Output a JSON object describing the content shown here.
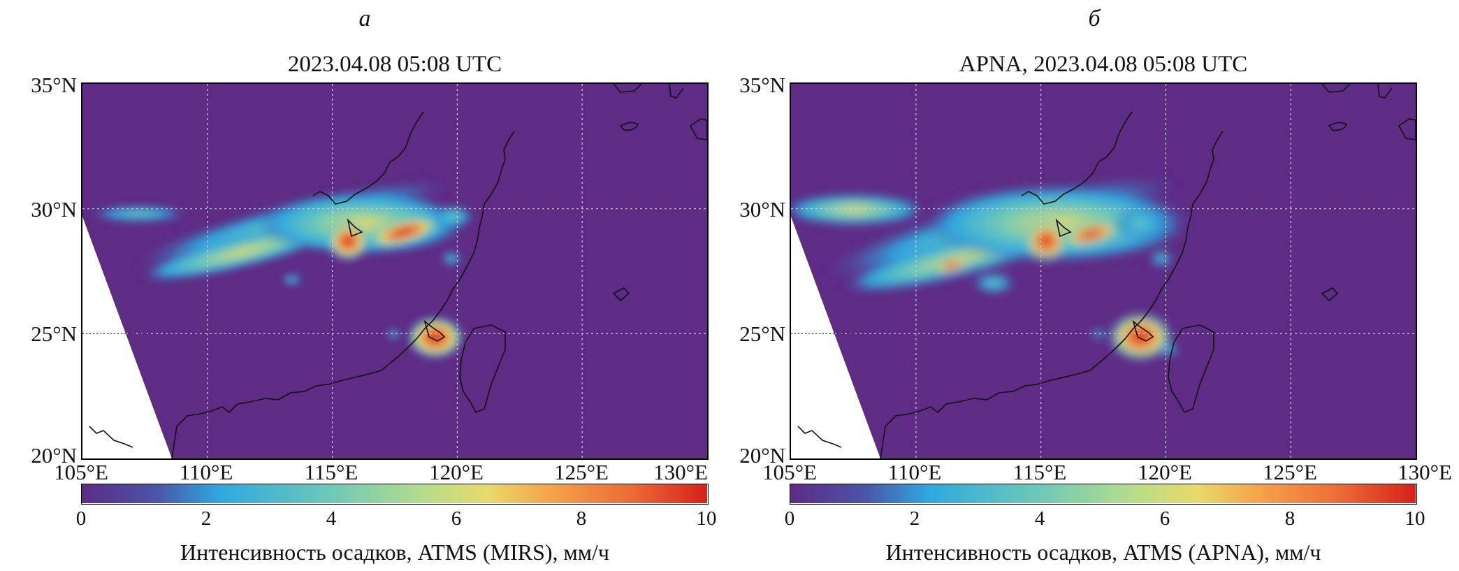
{
  "colors": {
    "background_no_rain": "#5e2b85",
    "swath_gap": "#ffffff",
    "coast": "#111111",
    "grid": "#cfcfe0",
    "colormap": [
      "#5e2b85",
      "#4a55a8",
      "#2fa8e0",
      "#6ec9b8",
      "#b8dc8a",
      "#e8da6a",
      "#f6a24a",
      "#ec6a36",
      "#d7201a"
    ]
  },
  "panels": [
    {
      "letter": "а",
      "title": "2023.04.08 05:08 UTC",
      "lat_labels": [
        "35°N",
        "30°N",
        "25°N",
        "20°N"
      ],
      "lon_labels": [
        "105°E",
        "110°E",
        "115°E",
        "120°E",
        "125°E",
        "130°E"
      ],
      "colorbar": {
        "ticks": [
          "0",
          "2",
          "4",
          "6",
          "8",
          "10"
        ],
        "label": "Интенсивность осадков, ATMS (MIRS), мм/ч"
      }
    },
    {
      "letter": "б",
      "title": "APNA, 2023.04.08 05:08 UTC",
      "lat_labels": [
        "35°N",
        "30°N",
        "25°N",
        "20°N"
      ],
      "lon_labels": [
        "105°E",
        "110°E",
        "115°E",
        "120°E",
        "125°E",
        "130°E"
      ],
      "colorbar": {
        "ticks": [
          "0",
          "2",
          "4",
          "6",
          "8",
          "10"
        ],
        "label": "Интенсивность осадков, ATMS (APNA), мм/ч"
      }
    }
  ],
  "map_extent": {
    "lon": [
      105,
      130
    ],
    "lat": [
      20,
      35
    ]
  }
}
